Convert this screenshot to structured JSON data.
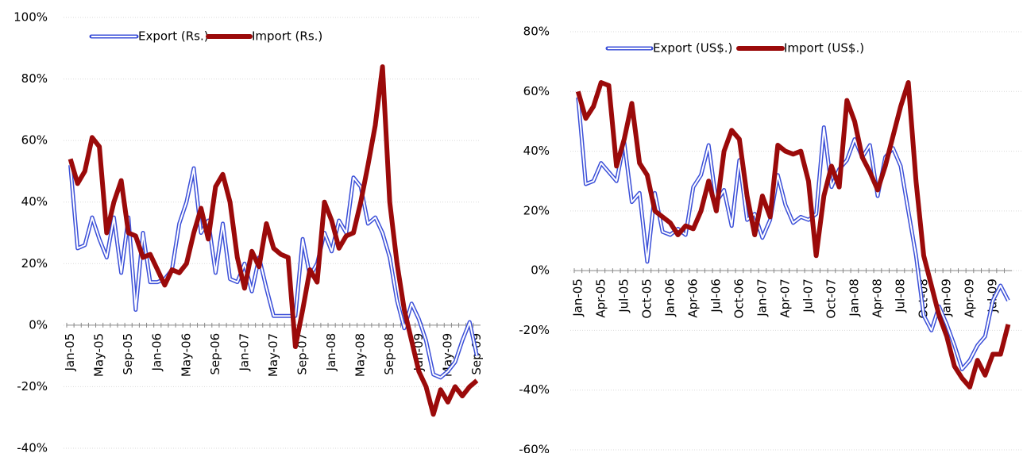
{
  "chart_data": [
    {
      "type": "line",
      "categories": [
        "Jan-05",
        null,
        null,
        null,
        "May-05",
        null,
        null,
        null,
        "Sep-05",
        null,
        null,
        null,
        "Jan-06",
        null,
        null,
        null,
        "May-06",
        null,
        null,
        null,
        "Sep-06",
        null,
        null,
        null,
        "Jan-07",
        null,
        null,
        null,
        "May-07",
        null,
        null,
        null,
        "Sep-07",
        null,
        null,
        null,
        "Jan-08",
        null,
        null,
        null,
        "May-08",
        null,
        null,
        null,
        "Sep-08",
        null,
        null,
        null,
        "Jan-09",
        null,
        null,
        null,
        "May-09",
        null,
        null,
        null,
        "Sep-09"
      ],
      "series": [
        {
          "name": "Export (Rs.)",
          "color": "#3b4fd8",
          "values": [
            52,
            25,
            26,
            35,
            28,
            22,
            35,
            17,
            35,
            5,
            30,
            14,
            14,
            15,
            18,
            33,
            40,
            51,
            30,
            34,
            17,
            33,
            15,
            14,
            20,
            11,
            22,
            12,
            3,
            3,
            3,
            3,
            28,
            16,
            20,
            30,
            24,
            34,
            30,
            48,
            45,
            33,
            35,
            30,
            22,
            8,
            -1,
            7,
            2,
            -5,
            -16,
            -17,
            -15,
            -12,
            -5,
            1,
            -10
          ]
        },
        {
          "name": "Import (Rs.)",
          "color": "#9b0a0a",
          "values": [
            54,
            46,
            50,
            61,
            58,
            30,
            40,
            47,
            30,
            29,
            22,
            23,
            18,
            13,
            18,
            17,
            20,
            30,
            38,
            28,
            45,
            49,
            40,
            22,
            12,
            24,
            19,
            33,
            25,
            23,
            22,
            -7,
            5,
            18,
            14,
            40,
            34,
            25,
            29,
            30,
            40,
            52,
            65,
            84,
            40,
            20,
            5,
            -5,
            -15,
            -20,
            -29,
            -21,
            -25,
            -20,
            -23,
            -20,
            -18
          ]
        }
      ],
      "ylim": [
        -40,
        100
      ],
      "yticks": [
        {
          "value": -40,
          "label": "-40%"
        },
        {
          "value": -20,
          "label": "-20%"
        },
        {
          "value": 0,
          "label": "0%"
        },
        {
          "value": 20,
          "label": "20%"
        },
        {
          "value": 40,
          "label": "40%"
        },
        {
          "value": 60,
          "label": "60%"
        },
        {
          "value": 80,
          "label": "80%"
        },
        {
          "value": 100,
          "label": "100%"
        }
      ],
      "grid": true
    },
    {
      "type": "line",
      "categories": [
        "Jan-05",
        null,
        null,
        "Apr-05",
        null,
        null,
        "Jul-05",
        null,
        null,
        "Oct-05",
        null,
        null,
        "Jan-06",
        null,
        null,
        "Apr-06",
        null,
        null,
        "Jul-06",
        null,
        null,
        "Oct-06",
        null,
        null,
        "Jan-07",
        null,
        null,
        "Apr-07",
        null,
        null,
        "Jul-07",
        null,
        null,
        "Oct-07",
        null,
        null,
        "Jan-08",
        null,
        null,
        "Apr-08",
        null,
        null,
        "Jul-08",
        null,
        null,
        "Oct-08",
        null,
        null,
        "Jan-09",
        null,
        null,
        "Apr-09",
        null,
        null,
        "Jul-09",
        null,
        null
      ],
      "series": [
        {
          "name": "Export (US$.)",
          "color": "#3b4fd8",
          "values": [
            58,
            29,
            30,
            36,
            33,
            30,
            43,
            23,
            26,
            3,
            26,
            13,
            12,
            14,
            12,
            28,
            32,
            42,
            23,
            27,
            15,
            37,
            17,
            19,
            11,
            17,
            32,
            22,
            16,
            18,
            17,
            19,
            48,
            28,
            34,
            37,
            44,
            38,
            42,
            25,
            38,
            41,
            35,
            20,
            5,
            -15,
            -20,
            -12,
            -18,
            -25,
            -33,
            -30,
            -25,
            -22,
            -10,
            -5,
            -10
          ]
        },
        {
          "name": "Import (US$.)",
          "color": "#9b0a0a",
          "values": [
            60,
            51,
            55,
            63,
            62,
            35,
            44,
            56,
            36,
            32,
            20,
            18,
            16,
            12,
            15,
            14,
            20,
            30,
            20,
            40,
            47,
            44,
            25,
            12,
            25,
            18,
            42,
            40,
            39,
            40,
            30,
            5,
            25,
            35,
            28,
            57,
            50,
            38,
            33,
            27,
            35,
            45,
            55,
            63,
            30,
            5,
            -5,
            -15,
            -22,
            -32,
            -36,
            -39,
            -30,
            -35,
            -28,
            -28,
            -18
          ]
        }
      ],
      "ylim": [
        -60,
        80
      ],
      "yticks": [
        {
          "value": -60,
          "label": "-60%"
        },
        {
          "value": -40,
          "label": "-40%"
        },
        {
          "value": -20,
          "label": "-20%"
        },
        {
          "value": 0,
          "label": "0%"
        },
        {
          "value": 20,
          "label": "20%"
        },
        {
          "value": 40,
          "label": "40%"
        },
        {
          "value": 60,
          "label": "60%"
        },
        {
          "value": 80,
          "label": "80%"
        }
      ],
      "grid": true
    }
  ]
}
